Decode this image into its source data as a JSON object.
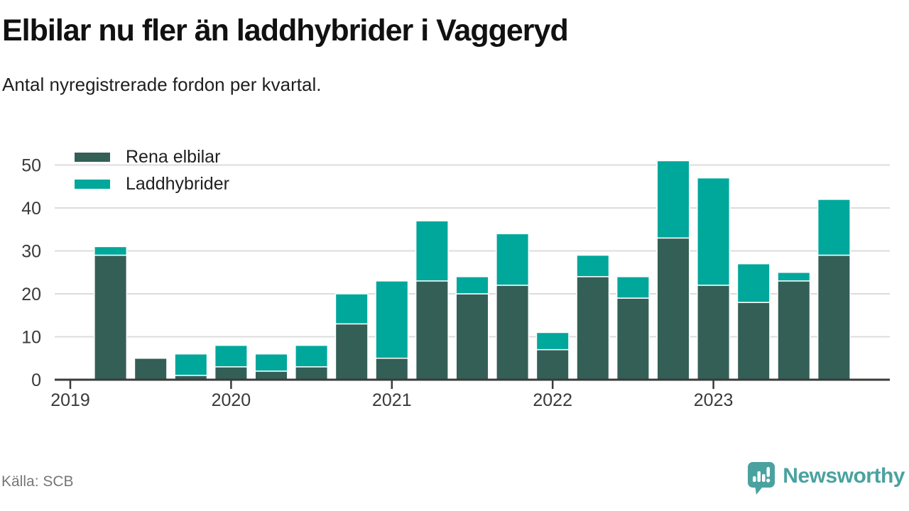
{
  "header": {
    "title": "Elbilar nu fler än laddhybrider i Vaggeryd",
    "subtitle": "Antal nyregistrerade fordon per kvartal."
  },
  "chart_data": {
    "type": "bar",
    "stacked": true,
    "title": "Elbilar nu fler än laddhybrider i Vaggeryd",
    "subtitle": "Antal nyregistrerade fordon per kvartal.",
    "xlabel": "",
    "ylabel": "",
    "x": [
      "2019 Q2",
      "2019 Q3",
      "2019 Q4",
      "2020 Q1",
      "2020 Q2",
      "2020 Q3",
      "2020 Q4",
      "2021 Q1",
      "2021 Q2",
      "2021 Q3",
      "2021 Q4",
      "2022 Q1",
      "2022 Q2",
      "2022 Q3",
      "2022 Q4",
      "2023 Q1",
      "2023 Q2",
      "2023 Q3",
      "2023 Q4"
    ],
    "series": [
      {
        "name": "Rena elbilar",
        "color": "#335f56",
        "values": [
          29,
          5,
          1,
          3,
          2,
          3,
          13,
          5,
          23,
          20,
          22,
          7,
          24,
          19,
          33,
          22,
          18,
          23,
          29
        ]
      },
      {
        "name": "Laddhybrider",
        "color": "#00a79b",
        "values": [
          2,
          0,
          5,
          5,
          4,
          5,
          7,
          18,
          14,
          4,
          12,
          4,
          5,
          5,
          18,
          25,
          9,
          2,
          13
        ]
      }
    ],
    "totals": [
      31,
      5,
      6,
      8,
      6,
      8,
      20,
      23,
      37,
      24,
      34,
      11,
      29,
      24,
      51,
      47,
      27,
      25,
      42
    ],
    "ylim": [
      0,
      55
    ],
    "yticks": [
      0,
      10,
      20,
      30,
      40,
      50
    ],
    "year_ticks": [
      2019,
      2020,
      2021,
      2022,
      2023
    ],
    "grid": "horizontal",
    "legend_position": "top-left-inside"
  },
  "footer": {
    "source": "Källa: SCB",
    "brand": "Newsworthy"
  },
  "colors": {
    "rena_elbilar": "#335f56",
    "laddhybrider": "#00a79b",
    "axis": "#3b3b3b",
    "grid": "#dcdcdc",
    "tick_text": "#3a3a3a",
    "brand_teal": "#4aa2a0"
  }
}
